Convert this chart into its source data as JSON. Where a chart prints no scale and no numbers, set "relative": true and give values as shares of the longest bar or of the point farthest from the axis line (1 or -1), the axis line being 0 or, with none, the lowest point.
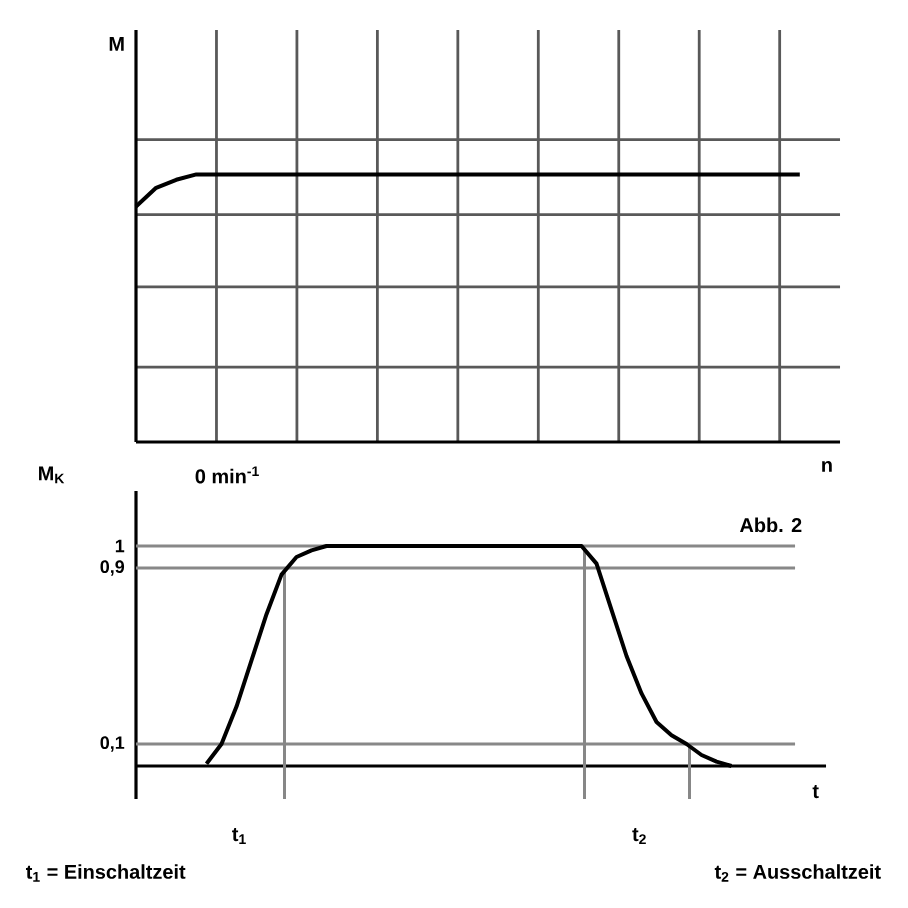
{
  "chart_data": [
    {
      "type": "line",
      "ylabel": "M",
      "xlabel": "n",
      "relative": true,
      "grid": true,
      "color": "#000000",
      "annotations": [
        "M$_{K}$",
        "0 min$^{-1}$"
      ],
      "categories": [
        null,
        null,
        null,
        null,
        null,
        null,
        null,
        null,
        null,
        null,
        null,
        null,
        null,
        null,
        null,
        null,
        null,
        null,
        null,
        null,
        null,
        null,
        null,
        null,
        null,
        null,
        null,
        null,
        null,
        null,
        null,
        null,
        null,
        null
      ],
      "values": [
        0.88,
        0.95,
        0.98,
        1,
        1,
        1,
        1,
        1,
        1,
        1,
        1,
        1,
        1,
        1,
        1,
        1,
        1,
        1,
        1,
        1,
        1,
        1,
        1,
        1,
        1,
        1,
        1,
        1,
        1,
        1,
        1,
        1,
        1,
        1
      ]
    },
    {
      "type": "line",
      "xlabel": "t",
      "color": "#000000",
      "tick_labels": "y",
      "ylim": [
        -0.15,
        1.25
      ],
      "yticks": [
        1,
        {
          "value": 0.9,
          "label": "0,9"
        },
        {
          "value": 0.1,
          "label": "0,1"
        }
      ],
      "ref_lines": [
        {
          "axis": "y",
          "value": 1,
          "color": "#888888"
        },
        {
          "axis": "y",
          "value": 0.9,
          "color": "#888888"
        },
        {
          "axis": "y",
          "value": 0.1,
          "color": "#888888"
        }
      ],
      "annotations": [
        "Abb. 2",
        "t$_{1}$",
        "t$_{2}$",
        "t$_{1}$ = Einschaltzeit",
        "t$_{2}$ = Ausschaltzeit"
      ],
      "categories": [
        null,
        null,
        null,
        null,
        null,
        null,
        null,
        null,
        null,
        null,
        null,
        null,
        null,
        null,
        null,
        null,
        null,
        null,
        null,
        null,
        null,
        null,
        null,
        null,
        null,
        null,
        null,
        null,
        null,
        null,
        null,
        null,
        null,
        null,
        null,
        null
      ],
      "values": [
        0.01,
        0.1,
        0.27,
        0.48,
        0.69,
        0.87,
        0.95,
        0.98,
        1,
        1,
        1,
        1,
        1,
        1,
        1,
        1,
        1,
        1,
        1,
        1,
        1,
        1,
        1,
        1,
        1,
        1,
        0.92,
        0.71,
        0.5,
        0.33,
        0.2,
        0.14,
        0.1,
        0.05,
        0.02,
        0
      ]
    }
  ]
}
